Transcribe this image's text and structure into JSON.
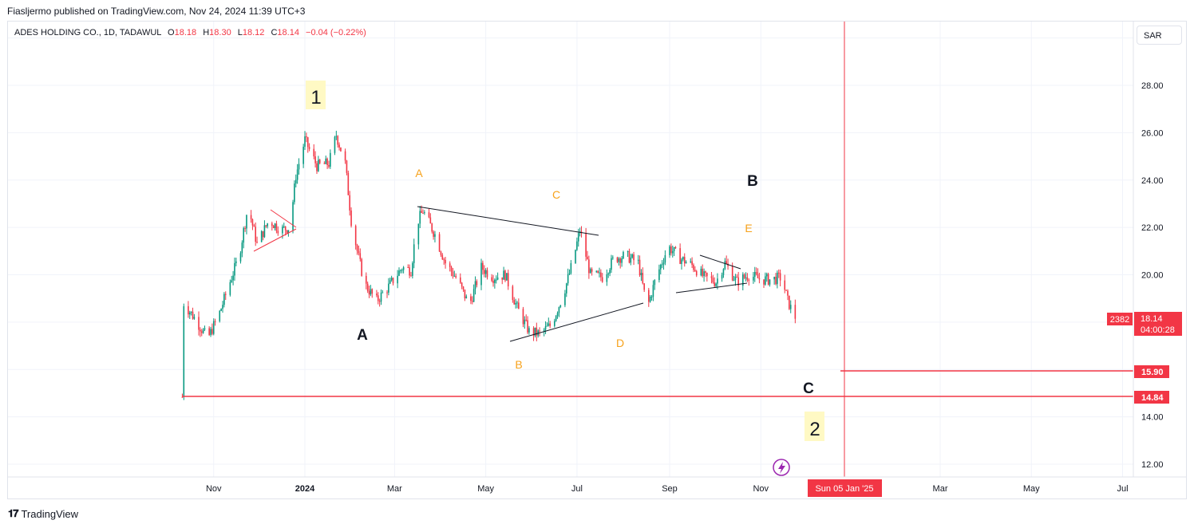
{
  "header": {
    "publisher_line": "Fiasljermo published on TradingView.com, Nov 24, 2024 11:39 UTC+3"
  },
  "legend": {
    "symbol": "ADES HOLDING CO., 1D, TADAWUL",
    "open_label": "O",
    "open": "18.18",
    "high_label": "H",
    "high": "18.30",
    "low_label": "L",
    "low": "18.12",
    "close_label": "C",
    "close": "18.14",
    "change": "−0.04 (−0.22%)"
  },
  "currency_button": "SAR",
  "footer": {
    "brand": "TradingView",
    "icon": "tradingview-logo-icon"
  },
  "price_axis": {
    "ticks": [
      "28.00",
      "26.00",
      "24.00",
      "22.00",
      "20.00",
      "14.00",
      "12.00"
    ],
    "last_price_label": "18.14",
    "countdown": "04:00:28",
    "volume_tag": "2382",
    "level_1": "15.90",
    "level_2": "14.84"
  },
  "time_axis": {
    "ticks": [
      "Nov",
      "2024",
      "Mar",
      "May",
      "Jul",
      "Sep",
      "Nov",
      "Mar",
      "May",
      "Jul"
    ],
    "crosshair_label": "Sun 05 Jan '25"
  },
  "annotations": {
    "wave_1": "1",
    "wave_2": "2",
    "wave_A": "A",
    "wave_B": "B",
    "wave_C": "C",
    "sub_A": "A",
    "sub_B": "B",
    "sub_C": "C",
    "sub_D": "D",
    "sub_E": "E"
  },
  "colors": {
    "up": "#089981",
    "down": "#f23645",
    "orange": "#f7a21b",
    "level": "#f23645",
    "highlight": "#fff9c4"
  },
  "chart_data": {
    "type": "candlestick",
    "symbol": "ADES HOLDING CO., 1D, TADAWUL",
    "currency": "SAR",
    "ylim": [
      11.4,
      31.5
    ],
    "xlim": [
      "2023-09-22",
      "2025-07-22"
    ],
    "y_ticks": [
      12,
      14,
      20,
      22,
      24,
      26,
      28
    ],
    "horizontal_levels": [
      15.9,
      14.84
    ],
    "crosshair_date": "2025-01-05",
    "last": {
      "open": 18.18,
      "high": 18.3,
      "low": 18.12,
      "close": 18.14,
      "change": -0.04,
      "change_pct": -0.22
    },
    "price_path": [
      [
        "2023-10-11",
        14.84
      ],
      [
        "2023-10-12",
        18.8
      ],
      [
        "2023-10-20",
        18.1
      ],
      [
        "2023-10-28",
        17.3
      ],
      [
        "2023-11-05",
        18.4
      ],
      [
        "2023-11-13",
        19.9
      ],
      [
        "2023-11-18",
        20.8
      ],
      [
        "2023-11-24",
        22.9
      ],
      [
        "2023-11-30",
        21.3
      ],
      [
        "2023-12-08",
        22.3
      ],
      [
        "2023-12-16",
        21.9
      ],
      [
        "2023-12-22",
        22.0
      ],
      [
        "2023-12-26",
        24.2
      ],
      [
        "2024-01-01",
        25.7
      ],
      [
        "2024-01-09",
        24.6
      ],
      [
        "2024-01-17",
        24.7
      ],
      [
        "2024-01-22",
        25.9
      ],
      [
        "2024-01-28",
        24.7
      ],
      [
        "2024-02-01",
        22.3
      ],
      [
        "2024-02-05",
        21.0
      ],
      [
        "2024-02-10",
        19.6
      ],
      [
        "2024-02-18",
        18.9
      ],
      [
        "2024-02-26",
        19.5
      ],
      [
        "2024-03-06",
        20.3
      ],
      [
        "2024-03-12",
        20.2
      ],
      [
        "2024-03-16",
        22.2
      ],
      [
        "2024-03-20",
        22.7
      ],
      [
        "2024-03-28",
        21.7
      ],
      [
        "2024-04-04",
        20.5
      ],
      [
        "2024-04-12",
        19.8
      ],
      [
        "2024-04-20",
        18.7
      ],
      [
        "2024-04-28",
        20.3
      ],
      [
        "2024-05-06",
        19.9
      ],
      [
        "2024-05-14",
        20.0
      ],
      [
        "2024-05-22",
        18.6
      ],
      [
        "2024-05-30",
        17.6
      ],
      [
        "2024-06-06",
        17.5
      ],
      [
        "2024-06-14",
        17.9
      ],
      [
        "2024-06-22",
        19.2
      ],
      [
        "2024-06-28",
        20.5
      ],
      [
        "2024-07-03",
        21.9
      ],
      [
        "2024-07-10",
        20.0
      ],
      [
        "2024-07-18",
        19.9
      ],
      [
        "2024-07-26",
        20.7
      ],
      [
        "2024-08-03",
        20.8
      ],
      [
        "2024-08-11",
        20.5
      ],
      [
        "2024-08-17",
        18.6
      ],
      [
        "2024-08-23",
        19.9
      ],
      [
        "2024-08-31",
        21.2
      ],
      [
        "2024-09-08",
        20.7
      ],
      [
        "2024-09-16",
        20.4
      ],
      [
        "2024-09-24",
        19.9
      ],
      [
        "2024-10-02",
        19.7
      ],
      [
        "2024-10-08",
        20.5
      ],
      [
        "2024-10-16",
        19.7
      ],
      [
        "2024-10-24",
        20.0
      ],
      [
        "2024-11-01",
        19.8
      ],
      [
        "2024-11-09",
        19.8
      ],
      [
        "2024-11-15",
        19.9
      ],
      [
        "2024-11-19",
        18.9
      ],
      [
        "2024-11-24",
        18.14
      ]
    ]
  }
}
